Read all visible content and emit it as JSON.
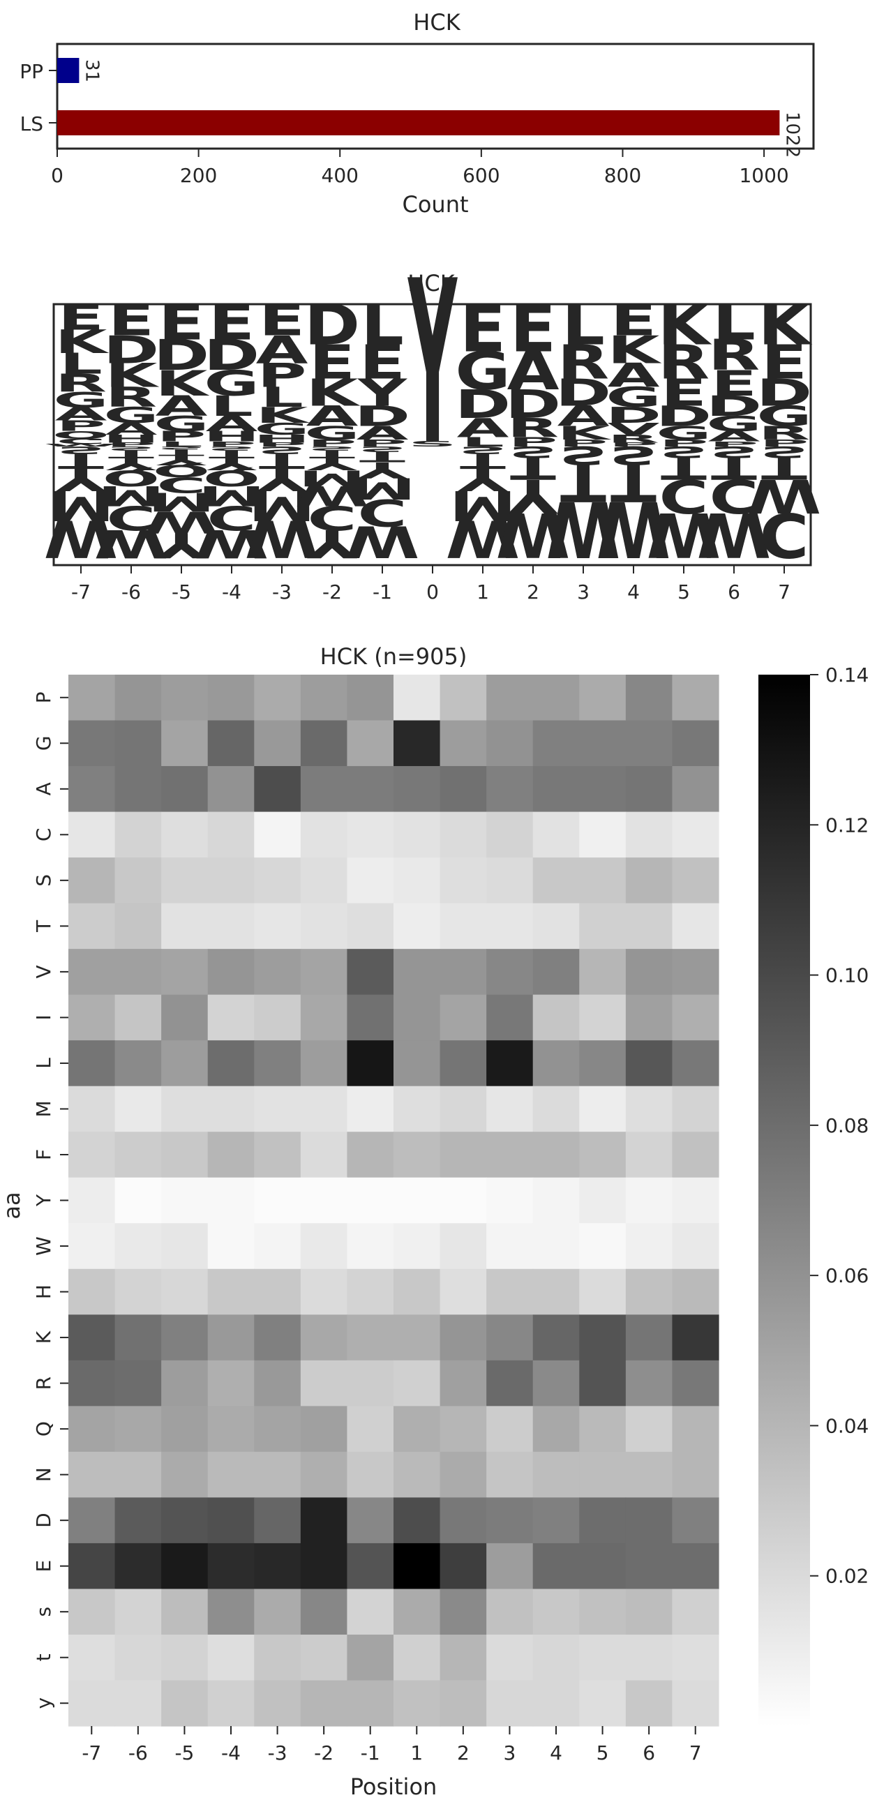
{
  "chart_data": [
    {
      "type": "bar",
      "orientation": "horizontal",
      "title": "HCK",
      "xlabel": "Count",
      "ylabel": "",
      "categories": [
        "PP",
        "LS"
      ],
      "values": [
        31,
        1022
      ],
      "value_labels": [
        "31",
        "1022"
      ],
      "colors": [
        "#00008b",
        "#8b0000"
      ],
      "xlim": [
        0,
        1070
      ],
      "xticks": [
        0,
        200,
        400,
        600,
        800,
        1000
      ],
      "xtick_labels": [
        "0",
        "200",
        "400",
        "600",
        "800",
        "1000"
      ],
      "grid": false
    },
    {
      "type": "sequence-logo",
      "title": "HCK",
      "xlabel": "",
      "ylabel": "",
      "positions": [
        "-7",
        "-6",
        "-5",
        "-4",
        "-3",
        "-2",
        "-1",
        "0",
        "1",
        "2",
        "3",
        "4",
        "5",
        "6",
        "7"
      ],
      "center_residue": "Y",
      "center_color": "#8b3a0f",
      "colors": {
        "acidic": "#e0224e",
        "basic": "#1010e8",
        "small": "#118a11",
        "hydrophobic": "#d9a21b",
        "proline": "#000000",
        "polar": "#a020b0",
        "aromatic": "#8b3a0f",
        "phospho": "#8b3a0f"
      },
      "columns": [
        {
          "up": [
            "W",
            "C",
            "Q",
            "P",
            "A",
            "G",
            "R",
            "L",
            "K",
            "E"
          ],
          "down": [
            "S",
            "T",
            "Y",
            "M",
            "W"
          ]
        },
        {
          "up": [
            "P",
            "H",
            "A",
            "G",
            "R",
            "K",
            "D",
            "E"
          ],
          "down": [
            "S",
            "T",
            "Y",
            "Q",
            "M",
            "C",
            "W"
          ]
        },
        {
          "up": [
            "L",
            "P",
            "G",
            "A",
            "K",
            "D",
            "E"
          ],
          "down": [
            "S",
            "T",
            "Y",
            "Q",
            "C",
            "M",
            "W",
            "Y"
          ]
        },
        {
          "up": [
            "P",
            "H",
            "A",
            "L",
            "G",
            "D",
            "E"
          ],
          "down": [
            "S",
            "T",
            "Y",
            "Q",
            "M",
            "C",
            "W"
          ]
        },
        {
          "up": [
            "P",
            "H",
            "G",
            "K",
            "L",
            "P",
            "A",
            "E"
          ],
          "down": [
            "S",
            "T",
            "Y",
            "M",
            "W"
          ]
        },
        {
          "up": [
            "P",
            "G",
            "A",
            "K",
            "E",
            "D"
          ],
          "down": [
            "S",
            "T",
            "Y",
            "M",
            "W",
            "C",
            "Y"
          ]
        },
        {
          "up": [
            "P",
            "A",
            "D",
            "Y",
            "E",
            "L"
          ],
          "down": [
            "S",
            "T",
            "Y",
            "M",
            "C",
            "W"
          ]
        },
        {
          "up": [
            "S",
            "Y"
          ],
          "down": []
        },
        {
          "up": [
            "L",
            "A",
            "D",
            "G",
            "E"
          ],
          "down": [
            "S",
            "T",
            "Y",
            "M",
            "W"
          ]
        },
        {
          "up": [
            "P",
            "R",
            "D",
            "A",
            "E"
          ],
          "down": [
            "S",
            "T",
            "Y",
            "W"
          ]
        },
        {
          "up": [
            "P",
            "K",
            "A",
            "D",
            "R",
            "L"
          ],
          "down": [
            "S",
            "T",
            "W"
          ]
        },
        {
          "up": [
            "P",
            "R",
            "V",
            "D",
            "G",
            "A",
            "K",
            "E"
          ],
          "down": [
            "S",
            "T",
            "W"
          ]
        },
        {
          "up": [
            "P",
            "G",
            "D",
            "E",
            "R",
            "K"
          ],
          "down": [
            "S",
            "T",
            "C",
            "W"
          ]
        },
        {
          "up": [
            "P",
            "A",
            "G",
            "D",
            "E",
            "R",
            "L"
          ],
          "down": [
            "S",
            "T",
            "C",
            "W"
          ]
        },
        {
          "up": [
            "P",
            "R",
            "G",
            "D",
            "E",
            "K"
          ],
          "down": [
            "S",
            "T",
            "W",
            "C"
          ]
        }
      ]
    },
    {
      "type": "heatmap",
      "title": "HCK (n=905)",
      "xlabel": "Position",
      "ylabel": "aa",
      "x": [
        "-7",
        "-6",
        "-5",
        "-4",
        "-3",
        "-2",
        "-1",
        "1",
        "2",
        "3",
        "4",
        "5",
        "6",
        "7"
      ],
      "y": [
        "P",
        "G",
        "A",
        "C",
        "S",
        "T",
        "V",
        "I",
        "L",
        "M",
        "F",
        "Y",
        "W",
        "H",
        "K",
        "R",
        "Q",
        "N",
        "D",
        "E",
        "s",
        "t",
        "y"
      ],
      "values": [
        [
          0.05,
          0.058,
          0.054,
          0.056,
          0.046,
          0.054,
          0.058,
          0.014,
          0.034,
          0.054,
          0.054,
          0.046,
          0.066,
          0.046
        ],
        [
          0.074,
          0.076,
          0.05,
          0.084,
          0.056,
          0.082,
          0.048,
          0.118,
          0.054,
          0.06,
          0.07,
          0.07,
          0.07,
          0.074
        ],
        [
          0.07,
          0.076,
          0.078,
          0.06,
          0.098,
          0.072,
          0.072,
          0.074,
          0.078,
          0.07,
          0.074,
          0.074,
          0.076,
          0.06
        ],
        [
          0.014,
          0.024,
          0.018,
          0.022,
          0.006,
          0.016,
          0.014,
          0.016,
          0.02,
          0.024,
          0.016,
          0.008,
          0.016,
          0.012
        ],
        [
          0.04,
          0.03,
          0.024,
          0.024,
          0.022,
          0.018,
          0.01,
          0.012,
          0.018,
          0.02,
          0.03,
          0.03,
          0.04,
          0.034
        ],
        [
          0.028,
          0.032,
          0.016,
          0.016,
          0.014,
          0.016,
          0.018,
          0.01,
          0.014,
          0.014,
          0.016,
          0.026,
          0.026,
          0.014
        ],
        [
          0.052,
          0.052,
          0.05,
          0.058,
          0.054,
          0.05,
          0.09,
          0.058,
          0.058,
          0.066,
          0.07,
          0.04,
          0.058,
          0.056
        ],
        [
          0.044,
          0.032,
          0.06,
          0.024,
          0.028,
          0.048,
          0.078,
          0.058,
          0.05,
          0.074,
          0.032,
          0.024,
          0.052,
          0.044
        ],
        [
          0.076,
          0.064,
          0.054,
          0.08,
          0.07,
          0.054,
          0.128,
          0.058,
          0.076,
          0.126,
          0.06,
          0.066,
          0.092,
          0.074
        ],
        [
          0.02,
          0.012,
          0.018,
          0.018,
          0.016,
          0.016,
          0.01,
          0.018,
          0.022,
          0.014,
          0.02,
          0.01,
          0.018,
          0.024
        ],
        [
          0.024,
          0.028,
          0.03,
          0.04,
          0.034,
          0.02,
          0.04,
          0.036,
          0.04,
          0.04,
          0.04,
          0.036,
          0.024,
          0.034
        ],
        [
          0.01,
          0.002,
          0.004,
          0.004,
          0.002,
          0.002,
          0.002,
          0.002,
          0.002,
          0.004,
          0.006,
          0.01,
          0.006,
          0.008
        ],
        [
          0.008,
          0.012,
          0.014,
          0.004,
          0.006,
          0.012,
          0.006,
          0.008,
          0.014,
          0.006,
          0.006,
          0.004,
          0.008,
          0.012
        ],
        [
          0.03,
          0.024,
          0.022,
          0.03,
          0.03,
          0.02,
          0.024,
          0.03,
          0.018,
          0.03,
          0.03,
          0.02,
          0.034,
          0.038
        ],
        [
          0.09,
          0.078,
          0.07,
          0.056,
          0.07,
          0.048,
          0.044,
          0.044,
          0.058,
          0.066,
          0.084,
          0.094,
          0.076,
          0.11
        ],
        [
          0.082,
          0.08,
          0.054,
          0.044,
          0.056,
          0.028,
          0.028,
          0.026,
          0.052,
          0.082,
          0.064,
          0.094,
          0.062,
          0.074
        ],
        [
          0.05,
          0.048,
          0.052,
          0.046,
          0.05,
          0.052,
          0.026,
          0.044,
          0.04,
          0.028,
          0.048,
          0.038,
          0.026,
          0.04
        ],
        [
          0.036,
          0.036,
          0.046,
          0.038,
          0.038,
          0.044,
          0.03,
          0.038,
          0.046,
          0.032,
          0.036,
          0.036,
          0.036,
          0.04
        ],
        [
          0.07,
          0.09,
          0.094,
          0.096,
          0.084,
          0.122,
          0.066,
          0.098,
          0.074,
          0.072,
          0.07,
          0.08,
          0.08,
          0.07
        ],
        [
          0.102,
          0.116,
          0.126,
          0.116,
          0.118,
          0.122,
          0.094,
          0.14,
          0.106,
          0.054,
          0.082,
          0.082,
          0.08,
          0.08
        ],
        [
          0.03,
          0.024,
          0.036,
          0.062,
          0.046,
          0.066,
          0.024,
          0.046,
          0.064,
          0.034,
          0.03,
          0.034,
          0.036,
          0.026
        ],
        [
          0.018,
          0.022,
          0.024,
          0.018,
          0.03,
          0.028,
          0.05,
          0.026,
          0.04,
          0.02,
          0.022,
          0.02,
          0.02,
          0.018
        ],
        [
          0.02,
          0.02,
          0.032,
          0.026,
          0.034,
          0.04,
          0.04,
          0.034,
          0.036,
          0.022,
          0.022,
          0.018,
          0.03,
          0.02
        ]
      ],
      "vmin": 0.0,
      "vmax": 0.14,
      "colormap": "grayscale (white = low, black = high)",
      "colorbar_ticks": [
        0.02,
        0.04,
        0.06,
        0.08,
        0.1,
        0.12,
        0.14
      ],
      "colorbar_tick_labels": [
        "0.02",
        "0.04",
        "0.06",
        "0.08",
        "0.10",
        "0.12",
        "0.14"
      ]
    }
  ]
}
